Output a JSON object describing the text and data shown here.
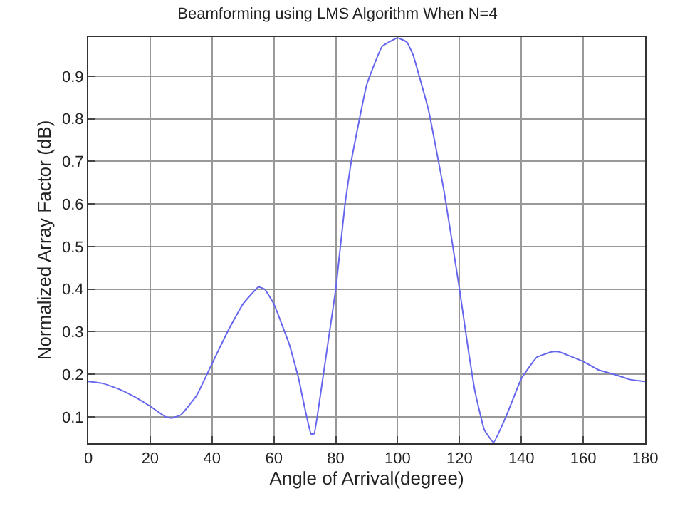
{
  "chart_data": {
    "type": "line",
    "title": "Beamforming using LMS Algorithm When N=4",
    "xlabel": "Angle of Arrival(degree)",
    "ylabel": "Normalized Array Factor (dB)",
    "x": [
      0,
      5,
      10,
      15,
      20,
      25,
      27,
      30,
      35,
      40,
      45,
      50,
      55,
      57,
      60,
      65,
      68,
      70,
      72,
      73,
      75,
      78,
      80,
      83,
      85,
      90,
      95,
      100,
      103,
      105,
      110,
      115,
      120,
      123,
      125,
      128,
      131,
      135,
      140,
      145,
      150,
      152,
      155,
      160,
      165,
      170,
      175,
      180
    ],
    "series": [
      {
        "color": "#6666ee",
        "values": [
          0.183,
          0.178,
          0.165,
          0.147,
          0.125,
          0.1,
          0.097,
          0.105,
          0.15,
          0.225,
          0.3,
          0.365,
          0.405,
          0.4,
          0.365,
          0.27,
          0.19,
          0.12,
          0.06,
          0.06,
          0.15,
          0.3,
          0.4,
          0.6,
          0.7,
          0.88,
          0.97,
          0.99,
          0.98,
          0.95,
          0.82,
          0.63,
          0.4,
          0.25,
          0.16,
          0.07,
          0.04,
          0.1,
          0.19,
          0.24,
          0.253,
          0.253,
          0.245,
          0.23,
          0.21,
          0.2,
          0.188,
          0.183
        ]
      }
    ],
    "xlim": [
      0,
      180
    ],
    "xticks": [
      0,
      20,
      40,
      60,
      80,
      100,
      120,
      140,
      160,
      180
    ],
    "ylim": [
      0.038,
      0.992
    ],
    "yticks": [
      0.1,
      0.2,
      0.3,
      0.4,
      0.5,
      0.6,
      0.7,
      0.8,
      0.9
    ],
    "grid": true,
    "legend": false,
    "marker": "none",
    "line_style": "solid"
  }
}
